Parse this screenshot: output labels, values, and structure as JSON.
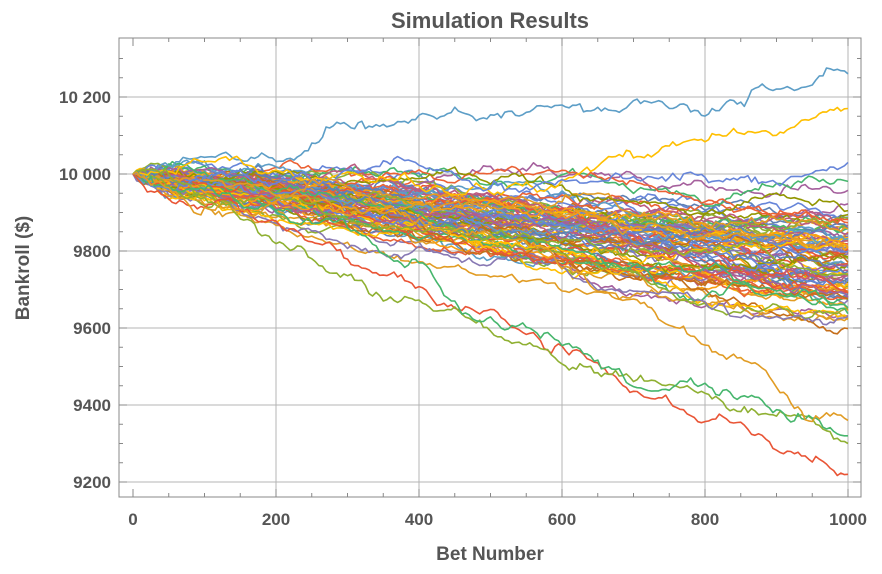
{
  "chart_data": {
    "type": "line",
    "title": "Simulation Results",
    "xlabel": "Bet Number",
    "ylabel": "Bankroll ($)",
    "xlim": [
      0,
      1000
    ],
    "ylim": [
      9180,
      10320
    ],
    "x_ticks": [
      0,
      200,
      400,
      600,
      800,
      1000
    ],
    "y_ticks": [
      9200,
      9400,
      9600,
      9800,
      10000,
      10200
    ],
    "x_tick_labels": [
      "0",
      "200",
      "400",
      "600",
      "800",
      "1000"
    ],
    "y_tick_labels": [
      "9200",
      "9400",
      "9600",
      "9800",
      "10 000",
      "10 200"
    ],
    "grid": true,
    "legend": "none",
    "start_value": 10000,
    "series_count": 100,
    "palette": [
      "#5e81b5",
      "#e19c24",
      "#8fb032",
      "#eb6235",
      "#8778b3",
      "#c56e1a",
      "#5d9ec7",
      "#ffbf00",
      "#a5609d",
      "#929600",
      "#e95536",
      "#6685d9",
      "#f89f13",
      "#bc5b80",
      "#47b66d"
    ],
    "series_endpoints": [
      {
        "x": [
          0,
          300,
          600,
          1000
        ],
        "values": [
          10000,
          10080,
          10120,
          10260
        ]
      },
      {
        "x": [
          0,
          300,
          600,
          1000
        ],
        "values": [
          10000,
          10060,
          10050,
          10170
        ]
      },
      {
        "x": [
          0,
          300,
          600,
          1000
        ],
        "values": [
          10000,
          10000,
          10040,
          10030
        ]
      },
      {
        "x": [
          0,
          300,
          600,
          1000
        ],
        "values": [
          10000,
          9800,
          9600,
          9220
        ]
      },
      {
        "x": [
          0,
          300,
          600,
          1000
        ],
        "values": [
          10000,
          9700,
          9480,
          9300
        ]
      },
      {
        "x": [
          0,
          300,
          600,
          1000
        ],
        "values": [
          10000,
          9850,
          9600,
          9320
        ]
      },
      {
        "x": [
          0,
          300,
          600,
          1000
        ],
        "values": [
          10000,
          9900,
          9700,
          9360
        ]
      }
    ]
  }
}
